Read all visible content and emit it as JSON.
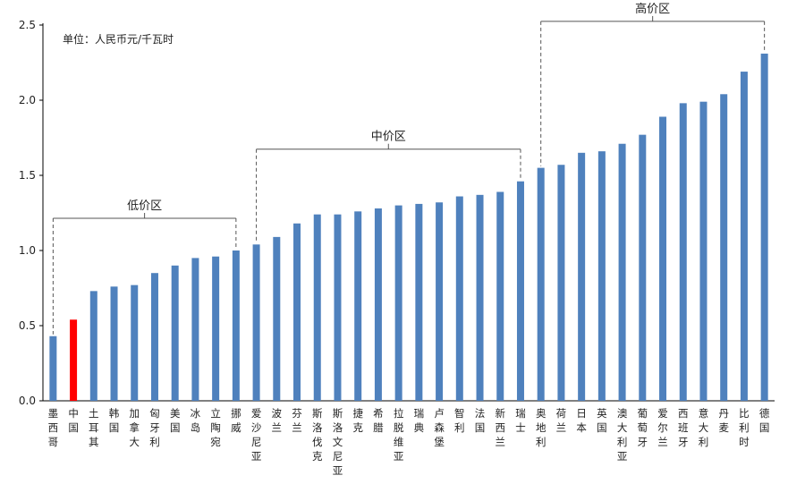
{
  "chart_data": {
    "type": "bar",
    "unit_label": "单位：人民币元/千瓦时",
    "ylim": [
      0,
      2.5
    ],
    "yticks": [
      "0.0",
      "0.5",
      "1.0",
      "1.5",
      "2.0",
      "2.5"
    ],
    "categories": [
      "墨西哥",
      "中国",
      "土耳其",
      "韩国",
      "加拿大",
      "匈牙利",
      "美国",
      "冰岛",
      "立陶宛",
      "挪威",
      "爱沙尼亚",
      "波兰",
      "芬兰",
      "斯洛伐克",
      "斯洛文尼亚",
      "捷克",
      "希腊",
      "拉脱维亚",
      "瑞典",
      "卢森堡",
      "智利",
      "法国",
      "新西兰",
      "瑞士",
      "奥地利",
      "荷兰",
      "日本",
      "英国",
      "澳大利亚",
      "葡萄牙",
      "爱尔兰",
      "西班牙",
      "意大利",
      "丹麦",
      "比利时",
      "德国"
    ],
    "values": [
      0.43,
      0.54,
      0.73,
      0.76,
      0.77,
      0.85,
      0.9,
      0.95,
      0.96,
      1.0,
      1.04,
      1.09,
      1.18,
      1.24,
      1.24,
      1.26,
      1.28,
      1.3,
      1.31,
      1.32,
      1.36,
      1.37,
      1.39,
      1.46,
      1.55,
      1.57,
      1.65,
      1.66,
      1.71,
      1.77,
      1.89,
      1.98,
      1.99,
      2.04,
      2.19,
      2.31
    ],
    "colors": {
      "bar": "#4F81BD",
      "highlight": "#FF0000",
      "highlight_index": 1,
      "axis": "#000000",
      "bracket": "#555555"
    },
    "zones": [
      {
        "label": "低价区",
        "from": 0,
        "to": 9
      },
      {
        "label": "中价区",
        "from": 10,
        "to": 23
      },
      {
        "label": "高价区",
        "from": 24,
        "to": 35
      }
    ]
  }
}
